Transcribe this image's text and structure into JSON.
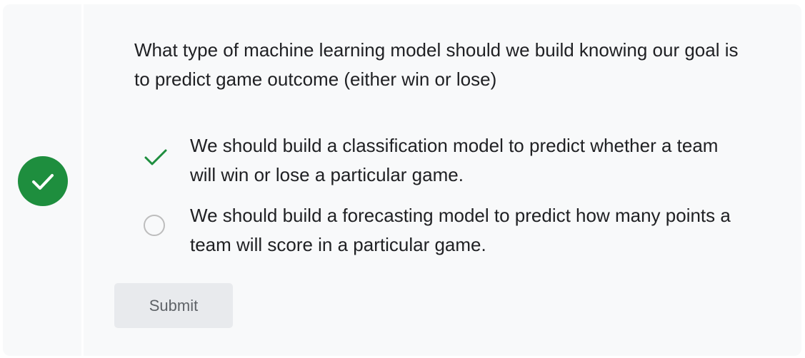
{
  "status": {
    "icon": "check-circle-icon",
    "color": "#1e8e3e"
  },
  "question": {
    "text": "What type of machine learning model should we build knowing our goal is to predict game outcome (either win or lose)"
  },
  "options": [
    {
      "text": "We should build a classification model to predict whether a team will win or lose a particular game.",
      "marker": "check-icon",
      "selected": true,
      "correct": true
    },
    {
      "text": "We should build a forecasting model to predict how many points a team will score in a particular game.",
      "marker": "radio-unselected",
      "selected": false
    }
  ],
  "actions": {
    "submit_label": "Submit"
  },
  "colors": {
    "success": "#1e8e3e",
    "card_bg": "#f8f9fa",
    "button_bg": "#e8eaed",
    "text": "#202124",
    "radio_border": "#bdbdbd"
  }
}
